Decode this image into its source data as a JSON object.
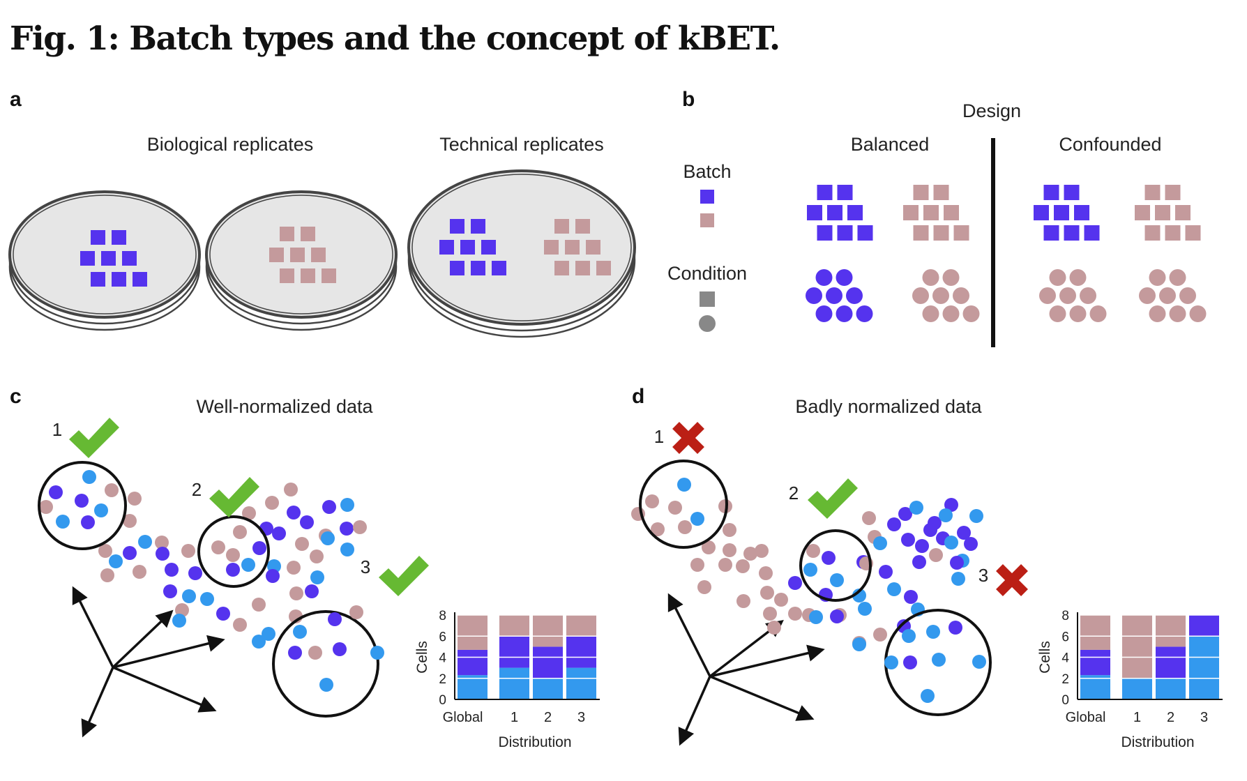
{
  "figure": {
    "title": "Fig. 1: Batch types and the concept of kBET."
  },
  "colors": {
    "batch1": "#5533ee",
    "batch2": "#c49a9c",
    "batch3": "#3399ee",
    "dish_fill": "#e6e6e6",
    "dish_stroke": "#444444",
    "check": "#66b933",
    "cross": "#bb1f15",
    "legend_gray": "#888888"
  },
  "panel_a": {
    "letter": "a",
    "label_biological": "Biological replicates",
    "label_technical": "Technical replicates"
  },
  "panel_b": {
    "letter": "b",
    "design": "Design",
    "balanced": "Balanced",
    "confounded": "Confounded",
    "legend_batch": "Batch",
    "legend_condition": "Condition"
  },
  "panel_c": {
    "letter": "c",
    "title": "Well-normalized data",
    "neighborhoods": [
      {
        "number": "1",
        "result": "check-icon"
      },
      {
        "number": "2",
        "result": "check-icon"
      },
      {
        "number": "3",
        "result": "check-icon"
      }
    ],
    "chart_data": {
      "type": "bar",
      "stacked": true,
      "categories": [
        "Global",
        "1",
        "2",
        "3"
      ],
      "xlabel": "Distribution",
      "ylabel": "Cells",
      "ylim": [
        0,
        8
      ],
      "yticks": [
        "0",
        "2",
        "4",
        "6",
        "8"
      ],
      "series": [
        {
          "color": "#3399ee",
          "values": [
            2.3,
            3,
            2,
            3
          ]
        },
        {
          "color": "#5533ee",
          "values": [
            2.4,
            3,
            3,
            3
          ]
        },
        {
          "color": "#c49a9c",
          "values": [
            3.3,
            2,
            3,
            2
          ]
        }
      ]
    }
  },
  "panel_d": {
    "letter": "d",
    "title": "Badly normalized data",
    "neighborhoods": [
      {
        "number": "1",
        "result": "cross-icon"
      },
      {
        "number": "2",
        "result": "check-icon"
      },
      {
        "number": "3",
        "result": "cross-icon"
      }
    ],
    "chart_data": {
      "type": "bar",
      "stacked": true,
      "categories": [
        "Global",
        "1",
        "2",
        "3"
      ],
      "xlabel": "Distribution",
      "ylabel": "Cells",
      "ylim": [
        0,
        8
      ],
      "yticks": [
        "0",
        "2",
        "4",
        "6",
        "8"
      ],
      "series": [
        {
          "color": "#3399ee",
          "values": [
            2.3,
            2,
            2,
            6
          ]
        },
        {
          "color": "#5533ee",
          "values": [
            2.4,
            0,
            3,
            2
          ]
        },
        {
          "color": "#c49a9c",
          "values": [
            3.3,
            6,
            3,
            0
          ]
        }
      ]
    }
  }
}
